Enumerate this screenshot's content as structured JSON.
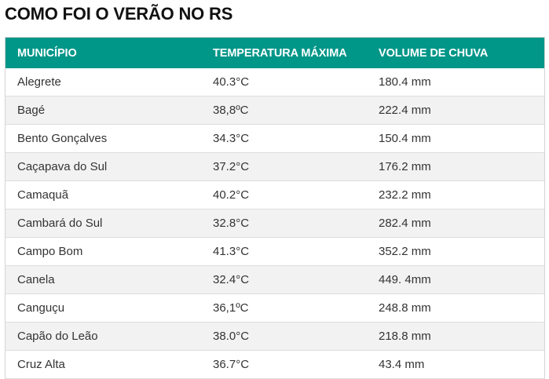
{
  "title": "COMO FOI O VERÃO NO RS",
  "table": {
    "headers": [
      "MUNICÍPIO",
      "TEMPERATURA MÁXIMA",
      "VOLUME DE CHUVA"
    ],
    "rows": [
      [
        "Alegrete",
        "40.3°C",
        "180.4 mm"
      ],
      [
        "Bagé",
        "38,8ºC",
        "222.4 mm"
      ],
      [
        "Bento Gonçalves",
        "34.3°C",
        "150.4 mm"
      ],
      [
        "Caçapava do Sul",
        "37.2°C",
        "176.2 mm"
      ],
      [
        "Camaquã",
        "40.2°C",
        "232.2 mm"
      ],
      [
        "Cambará do Sul",
        "32.8°C",
        "282.4 mm"
      ],
      [
        "Campo Bom",
        "41.3°C",
        "352.2 mm"
      ],
      [
        "Canela",
        "32.4°C",
        "449. 4mm"
      ],
      [
        "Canguçu",
        "36,1ºC",
        "248.8 mm"
      ],
      [
        "Capão do Leão",
        "38.0°C",
        "218.8 mm"
      ],
      [
        "Cruz Alta",
        "36.7°C",
        "43.4 mm"
      ]
    ]
  },
  "colors": {
    "header_bg": "#009688",
    "alt_row_bg": "#f2f2f2"
  }
}
